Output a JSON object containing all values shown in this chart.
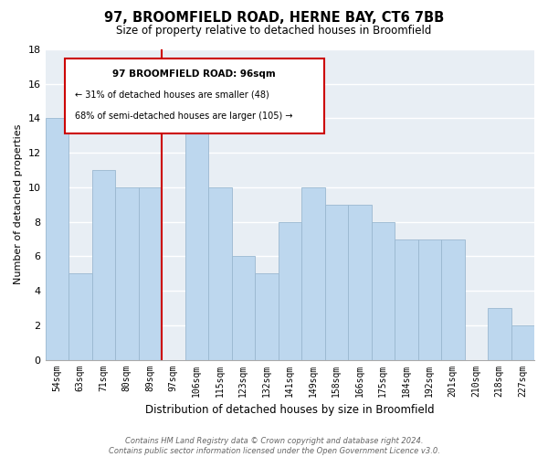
{
  "title": "97, BROOMFIELD ROAD, HERNE BAY, CT6 7BB",
  "subtitle": "Size of property relative to detached houses in Broomfield",
  "xlabel": "Distribution of detached houses by size in Broomfield",
  "ylabel": "Number of detached properties",
  "categories": [
    "54sqm",
    "63sqm",
    "71sqm",
    "80sqm",
    "89sqm",
    "97sqm",
    "106sqm",
    "115sqm",
    "123sqm",
    "132sqm",
    "141sqm",
    "149sqm",
    "158sqm",
    "166sqm",
    "175sqm",
    "184sqm",
    "192sqm",
    "201sqm",
    "210sqm",
    "218sqm",
    "227sqm"
  ],
  "values": [
    14,
    5,
    11,
    10,
    10,
    0,
    14,
    10,
    6,
    5,
    8,
    10,
    9,
    9,
    8,
    7,
    7,
    7,
    0,
    3,
    2
  ],
  "highlight_index": 5,
  "highlight_color": "#cc0000",
  "bar_color": "#bdd7ee",
  "bar_edge_color": "#9ab8d0",
  "ylim": [
    0,
    18
  ],
  "yticks": [
    0,
    2,
    4,
    6,
    8,
    10,
    12,
    14,
    16,
    18
  ],
  "annotation_title": "97 BROOMFIELD ROAD: 96sqm",
  "annotation_line1": "← 31% of detached houses are smaller (48)",
  "annotation_line2": "68% of semi-detached houses are larger (105) →",
  "footer_line1": "Contains HM Land Registry data © Crown copyright and database right 2024.",
  "footer_line2": "Contains public sector information licensed under the Open Government Licence v3.0.",
  "background_color": "#e8eef4",
  "grid_color": "#ffffff"
}
